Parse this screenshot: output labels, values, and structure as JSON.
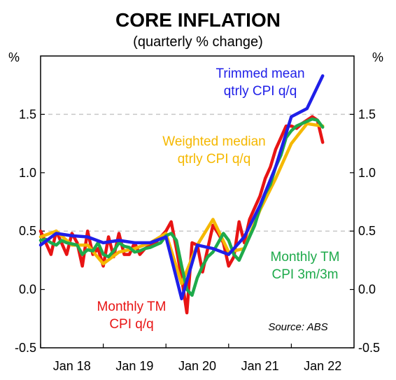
{
  "chart_data": {
    "type": "line",
    "title": "CORE INFLATION",
    "subtitle": "(quarterly % change)",
    "ylabel_left": "%",
    "ylabel_right": "%",
    "ylim": [
      -0.5,
      2.0
    ],
    "yticks": [
      "-0.5",
      "0.0",
      "0.5",
      "1.0",
      "1.5"
    ],
    "gridlines_at": [
      0.5,
      1.5
    ],
    "xlim": [
      "2018-01",
      "2022-12"
    ],
    "xticks": [
      "Jan 18",
      "Jan 19",
      "Jan 20",
      "Jan 21",
      "Jan 22"
    ],
    "source": "Source: ABS",
    "annotations": {
      "trimmed_mean": [
        "Trimmed mean",
        "qtrly CPI q/q"
      ],
      "weighted_median": [
        "Weighted median",
        "qtrly CPI q/q"
      ],
      "monthly_tm_3m": [
        "Monthly TM",
        "CPI 3m/3m"
      ],
      "monthly_tm_qq": [
        "Monthly TM",
        "CPI q/q"
      ]
    },
    "series": [
      {
        "color": "#1f1fe8",
        "points": [
          [
            "2018-01",
            0.38
          ],
          [
            "2018-04",
            0.48
          ],
          [
            "2018-07",
            0.46
          ],
          [
            "2018-10",
            0.45
          ],
          [
            "2019-01",
            0.4
          ],
          [
            "2019-04",
            0.42
          ],
          [
            "2019-07",
            0.4
          ],
          [
            "2019-10",
            0.4
          ],
          [
            "2020-01",
            0.45
          ],
          [
            "2020-04",
            -0.08
          ],
          [
            "2020-07",
            0.38
          ],
          [
            "2020-10",
            0.35
          ],
          [
            "2021-01",
            0.3
          ],
          [
            "2021-04",
            0.45
          ],
          [
            "2021-07",
            0.72
          ],
          [
            "2021-10",
            1.05
          ],
          [
            "2022-01",
            1.48
          ],
          [
            "2022-04",
            1.55
          ],
          [
            "2022-07",
            1.83
          ]
        ]
      },
      {
        "color": "#f5b800",
        "points": [
          [
            "2018-01",
            0.45
          ],
          [
            "2018-04",
            0.5
          ],
          [
            "2018-07",
            0.38
          ],
          [
            "2018-10",
            0.38
          ],
          [
            "2019-01",
            0.22
          ],
          [
            "2019-04",
            0.32
          ],
          [
            "2019-07",
            0.35
          ],
          [
            "2019-10",
            0.4
          ],
          [
            "2020-01",
            0.48
          ],
          [
            "2020-04",
            0.05
          ],
          [
            "2020-07",
            0.38
          ],
          [
            "2020-10",
            0.6
          ],
          [
            "2021-01",
            0.32
          ],
          [
            "2021-04",
            0.35
          ],
          [
            "2021-07",
            0.68
          ],
          [
            "2021-10",
            0.95
          ],
          [
            "2022-01",
            1.25
          ],
          [
            "2022-04",
            1.42
          ],
          [
            "2022-07",
            1.4
          ]
        ]
      },
      {
        "color": "#e81414",
        "points": [
          [
            "2018-01",
            0.5
          ],
          [
            "2018-02",
            0.4
          ],
          [
            "2018-03",
            0.3
          ],
          [
            "2018-04",
            0.5
          ],
          [
            "2018-05",
            0.4
          ],
          [
            "2018-06",
            0.3
          ],
          [
            "2018-07",
            0.48
          ],
          [
            "2018-08",
            0.4
          ],
          [
            "2018-09",
            0.2
          ],
          [
            "2018-10",
            0.5
          ],
          [
            "2018-11",
            0.3
          ],
          [
            "2018-12",
            0.35
          ],
          [
            "2019-01",
            0.2
          ],
          [
            "2019-02",
            0.45
          ],
          [
            "2019-03",
            0.28
          ],
          [
            "2019-04",
            0.48
          ],
          [
            "2019-05",
            0.3
          ],
          [
            "2019-06",
            0.3
          ],
          [
            "2019-07",
            0.4
          ],
          [
            "2019-08",
            0.3
          ],
          [
            "2019-09",
            0.35
          ],
          [
            "2019-10",
            0.38
          ],
          [
            "2019-11",
            0.4
          ],
          [
            "2019-12",
            0.45
          ],
          [
            "2020-01",
            0.5
          ],
          [
            "2020-02",
            0.58
          ],
          [
            "2020-03",
            0.35
          ],
          [
            "2020-04",
            0.1
          ],
          [
            "2020-05",
            -0.2
          ],
          [
            "2020-06",
            0.4
          ],
          [
            "2020-07",
            0.38
          ],
          [
            "2020-08",
            0.15
          ],
          [
            "2020-09",
            0.35
          ],
          [
            "2020-10",
            0.55
          ],
          [
            "2020-11",
            0.48
          ],
          [
            "2020-12",
            0.4
          ],
          [
            "2021-01",
            0.2
          ],
          [
            "2021-02",
            0.28
          ],
          [
            "2021-03",
            0.58
          ],
          [
            "2021-04",
            0.4
          ],
          [
            "2021-05",
            0.6
          ],
          [
            "2021-06",
            0.7
          ],
          [
            "2021-07",
            0.8
          ],
          [
            "2021-08",
            0.95
          ],
          [
            "2021-09",
            1.05
          ],
          [
            "2021-10",
            1.2
          ],
          [
            "2021-11",
            1.3
          ],
          [
            "2021-12",
            1.4
          ],
          [
            "2022-01",
            1.4
          ],
          [
            "2022-02",
            1.38
          ],
          [
            "2022-03",
            1.42
          ],
          [
            "2022-04",
            1.45
          ],
          [
            "2022-05",
            1.48
          ],
          [
            "2022-06",
            1.45
          ],
          [
            "2022-07",
            1.26
          ]
        ]
      },
      {
        "color": "#1eaa4b",
        "points": [
          [
            "2018-01",
            0.42
          ],
          [
            "2018-02",
            0.43
          ],
          [
            "2018-03",
            0.4
          ],
          [
            "2018-04",
            0.38
          ],
          [
            "2018-05",
            0.42
          ],
          [
            "2018-06",
            0.4
          ],
          [
            "2018-07",
            0.39
          ],
          [
            "2018-08",
            0.38
          ],
          [
            "2018-09",
            0.3
          ],
          [
            "2018-10",
            0.34
          ],
          [
            "2018-11",
            0.33
          ],
          [
            "2018-12",
            0.4
          ],
          [
            "2019-01",
            0.3
          ],
          [
            "2019-02",
            0.28
          ],
          [
            "2019-03",
            0.33
          ],
          [
            "2019-04",
            0.4
          ],
          [
            "2019-05",
            0.37
          ],
          [
            "2019-06",
            0.36
          ],
          [
            "2019-07",
            0.32
          ],
          [
            "2019-08",
            0.33
          ],
          [
            "2019-09",
            0.35
          ],
          [
            "2019-10",
            0.36
          ],
          [
            "2019-11",
            0.38
          ],
          [
            "2019-12",
            0.4
          ],
          [
            "2020-01",
            0.46
          ],
          [
            "2020-02",
            0.48
          ],
          [
            "2020-03",
            0.42
          ],
          [
            "2020-04",
            0.2
          ],
          [
            "2020-05",
            0.0
          ],
          [
            "2020-06",
            -0.05
          ],
          [
            "2020-07",
            0.1
          ],
          [
            "2020-08",
            0.2
          ],
          [
            "2020-09",
            0.28
          ],
          [
            "2020-10",
            0.32
          ],
          [
            "2020-11",
            0.4
          ],
          [
            "2020-12",
            0.48
          ],
          [
            "2021-01",
            0.42
          ],
          [
            "2021-02",
            0.3
          ],
          [
            "2021-03",
            0.25
          ],
          [
            "2021-04",
            0.35
          ],
          [
            "2021-05",
            0.45
          ],
          [
            "2021-06",
            0.55
          ],
          [
            "2021-07",
            0.7
          ],
          [
            "2021-08",
            0.82
          ],
          [
            "2021-09",
            0.9
          ],
          [
            "2021-10",
            1.05
          ],
          [
            "2021-11",
            1.15
          ],
          [
            "2021-12",
            1.3
          ],
          [
            "2022-01",
            1.36
          ],
          [
            "2022-02",
            1.4
          ],
          [
            "2022-03",
            1.42
          ],
          [
            "2022-04",
            1.44
          ],
          [
            "2022-05",
            1.46
          ],
          [
            "2022-06",
            1.45
          ],
          [
            "2022-07",
            1.39
          ]
        ]
      }
    ]
  }
}
